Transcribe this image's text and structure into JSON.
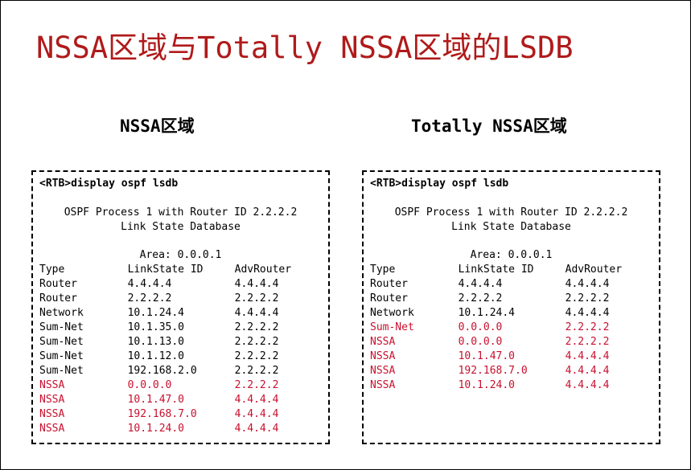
{
  "title": "NSSA区域与Totally NSSA区域的LSDB",
  "colors": {
    "title": "#b01a1a",
    "highlight": "#c8102e"
  },
  "panels": [
    {
      "heading": "NSSA区域",
      "command": "<RTB>display ospf lsdb",
      "process_line": "OSPF Process 1 with Router ID 2.2.2.2",
      "db_line": "Link State Database",
      "area": "Area: 0.0.0.1",
      "headers": [
        "Type",
        "LinkState ID",
        "AdvRouter"
      ],
      "rows": [
        [
          "Router",
          "4.4.4.4",
          "4.4.4.4",
          0
        ],
        [
          "Router",
          "2.2.2.2",
          "2.2.2.2",
          0
        ],
        [
          "Network",
          "10.1.24.4",
          "4.4.4.4",
          0
        ],
        [
          "Sum-Net",
          "10.1.35.0",
          "2.2.2.2",
          0
        ],
        [
          "Sum-Net",
          "10.1.13.0",
          "2.2.2.2",
          0
        ],
        [
          "Sum-Net",
          "10.1.12.0",
          "2.2.2.2",
          0
        ],
        [
          "Sum-Net",
          "192.168.2.0",
          "2.2.2.2",
          0
        ],
        [
          "NSSA",
          "0.0.0.0",
          "2.2.2.2",
          1
        ],
        [
          "NSSA",
          "10.1.47.0",
          "4.4.4.4",
          1
        ],
        [
          "NSSA",
          "192.168.7.0",
          "4.4.4.4",
          1
        ],
        [
          "NSSA",
          "10.1.24.0",
          "4.4.4.4",
          1
        ]
      ]
    },
    {
      "heading": "Totally NSSA区域",
      "command": "<RTB>display ospf lsdb",
      "process_line": "OSPF Process 1 with Router ID 2.2.2.2",
      "db_line": "Link State Database",
      "area": "Area: 0.0.0.1",
      "headers": [
        "Type",
        "LinkState ID",
        "AdvRouter"
      ],
      "rows": [
        [
          "Router",
          "4.4.4.4",
          "4.4.4.4",
          0
        ],
        [
          "Router",
          "2.2.2.2",
          "2.2.2.2",
          0
        ],
        [
          "Network",
          "10.1.24.4",
          "4.4.4.4",
          0
        ],
        [
          "Sum-Net",
          "0.0.0.0",
          "2.2.2.2",
          1
        ],
        [
          "NSSA",
          "0.0.0.0",
          "2.2.2.2",
          1
        ],
        [
          "NSSA",
          "10.1.47.0",
          "4.4.4.4",
          1
        ],
        [
          "NSSA",
          "192.168.7.0",
          "4.4.4.4",
          1
        ],
        [
          "NSSA",
          "10.1.24.0",
          "4.4.4.4",
          1
        ]
      ]
    }
  ]
}
